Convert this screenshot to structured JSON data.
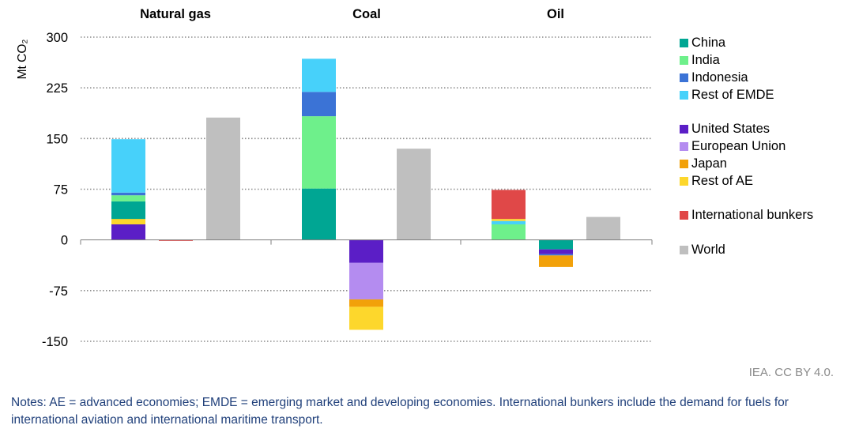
{
  "chart_data": {
    "type": "bar",
    "stacked": true,
    "ylabel": "Mt CO₂",
    "ylim": [
      -150,
      300
    ],
    "yticks": [
      300,
      225,
      150,
      75,
      0,
      -75,
      -150
    ],
    "ytick_labels": [
      "300",
      "225",
      "150",
      "75",
      "0",
      "-75",
      "-150"
    ],
    "grid": true,
    "legend_position": "right",
    "groups": [
      {
        "label": "Natural gas",
        "bars": [
          {
            "key": "emde",
            "segments": [
              {
                "series": "China",
                "value": 57
              },
              {
                "series": "India",
                "value": 9
              },
              {
                "series": "Indonesia",
                "value": 4
              },
              {
                "series": "Rest of EMDE",
                "value": 79
              }
            ]
          },
          {
            "key": "ae",
            "segments": [
              {
                "series": "United States",
                "value": 23
              },
              {
                "series": "Rest of AE",
                "value": 8
              }
            ]
          },
          {
            "key": "intl",
            "segments": [
              {
                "series": "International bunkers",
                "value": -1
              }
            ]
          },
          {
            "key": "world",
            "segments": [
              {
                "series": "World",
                "value": 181
              }
            ]
          }
        ]
      },
      {
        "label": "Coal",
        "bars": [
          {
            "key": "emde",
            "segments": [
              {
                "series": "China",
                "value": 76
              },
              {
                "series": "India",
                "value": 107
              },
              {
                "series": "Indonesia",
                "value": 36
              },
              {
                "series": "Rest of EMDE",
                "value": 49
              }
            ]
          },
          {
            "key": "ae",
            "segments": [
              {
                "series": "United States",
                "value": -34
              },
              {
                "series": "European Union",
                "value": -54
              },
              {
                "series": "Japan",
                "value": -11
              },
              {
                "series": "Rest of AE",
                "value": -34
              }
            ]
          },
          {
            "key": "world",
            "segments": [
              {
                "series": "World",
                "value": 135
              }
            ]
          }
        ]
      },
      {
        "label": "Oil",
        "bars": [
          {
            "key": "emde",
            "segments": [
              {
                "series": "India",
                "value": 23
              },
              {
                "series": "Rest of EMDE",
                "value": 5
              },
              {
                "series": "Rest of AE",
                "value": 3
              },
              {
                "series": "International bunkers",
                "value": 43
              }
            ]
          },
          {
            "key": "ae",
            "segments": [
              {
                "series": "China",
                "value": -14
              },
              {
                "series": "United States",
                "value": -7
              },
              {
                "series": "Indonesia",
                "value": -2
              },
              {
                "series": "Japan",
                "value": -17
              }
            ]
          },
          {
            "key": "world",
            "segments": [
              {
                "series": "World",
                "value": 34
              }
            ]
          }
        ]
      }
    ],
    "series": [
      {
        "name": "China",
        "color": "#00a693"
      },
      {
        "name": "India",
        "color": "#6ef08b"
      },
      {
        "name": "Indonesia",
        "color": "#3b73d6"
      },
      {
        "name": "Rest of EMDE",
        "color": "#47d1fa"
      },
      {
        "name": "United States",
        "color": "#5b1ec6"
      },
      {
        "name": "European Union",
        "color": "#b48cf0"
      },
      {
        "name": "Japan",
        "color": "#f2a10a"
      },
      {
        "name": "Rest of AE",
        "color": "#fdd72c"
      },
      {
        "name": "International bunkers",
        "color": "#e04848"
      },
      {
        "name": "World",
        "color": "#bfbfbf"
      }
    ]
  },
  "credit": "IEA. CC BY 4.0.",
  "notes": "Notes: AE = advanced economies; EMDE = emerging market and developing economies. International bunkers include the demand for fuels for international aviation and international maritime transport."
}
